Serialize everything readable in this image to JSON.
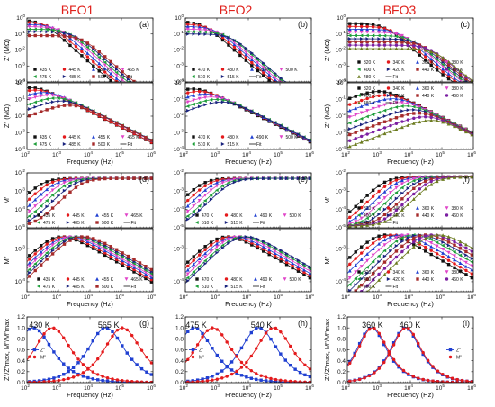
{
  "column_headers": [
    "BFO1",
    "BFO2",
    "BFO3"
  ],
  "colors": {
    "header": "#e0201b",
    "series": [
      "#111111",
      "#e41a1c",
      "#1f3fd1",
      "#e043c8",
      "#1d9e39",
      "#1a237e",
      "#a52a2a",
      "#7b1fa2",
      "#6b7b1f",
      "#0e7490"
    ],
    "blue": "#1f3fd1",
    "red": "#e41a1c"
  },
  "chart_data": [
    {
      "id": "a",
      "panel_label": "(a)",
      "type": "line",
      "xscale": "log",
      "yscale": "log",
      "xlim": [
        100,
        1000000
      ],
      "ylim": [
        0.0001,
        1
      ],
      "xlabel": "",
      "ylabel": "Z' (MΩ)",
      "y_ticks": [
        0.0001,
        0.001,
        0.01,
        0.1,
        1
      ],
      "legend": [
        "435 K",
        "445 K",
        "455 K",
        "465 K",
        "475 K",
        "485 K",
        "500 K",
        "Fit"
      ],
      "legend_position": "bottom-left",
      "shape": "real",
      "y_low": [
        0.75,
        0.55,
        0.4,
        0.29,
        0.2,
        0.14,
        0.08
      ],
      "f_relax": [
        300,
        500,
        800,
        1300,
        2000,
        3200,
        5500
      ],
      "high_end": 5e-05
    },
    {
      "id": "a2",
      "panel_label": "",
      "type": "line",
      "xscale": "log",
      "yscale": "log",
      "xlim": [
        100,
        1000000
      ],
      "ylim": [
        0.0001,
        1
      ],
      "xlabel": "Frequency (Hz)",
      "ylabel": "Z\" (MΩ)",
      "y_ticks": [
        0.0001,
        0.001,
        0.01,
        0.1,
        1
      ],
      "legend": [
        "435 K",
        "445 K",
        "455 K",
        "465 K",
        "475 K",
        "485 K",
        "500 K",
        "Fit"
      ],
      "legend_position": "bottom-left",
      "shape": "imag",
      "y_peak": [
        0.5,
        0.36,
        0.26,
        0.18,
        0.12,
        0.08,
        0.045
      ],
      "f_peak": [
        150,
        220,
        400,
        600,
        1000,
        1500,
        2600
      ]
    },
    {
      "id": "b",
      "panel_label": "(b)",
      "type": "line",
      "xscale": "log",
      "yscale": "log",
      "xlim": [
        100,
        1000000
      ],
      "ylim": [
        0.0001,
        1
      ],
      "xlabel": "",
      "ylabel": "",
      "y_ticks": [
        0.0001,
        0.001,
        0.01,
        0.1,
        1
      ],
      "legend": [
        "470 K",
        "480 K",
        "490 K",
        "500 K",
        "510 K",
        "515 K",
        "Fit"
      ],
      "legend_position": "bottom-left",
      "shape": "real",
      "y_low": [
        0.6,
        0.42,
        0.3,
        0.2,
        0.14,
        0.1
      ],
      "f_relax": [
        350,
        550,
        850,
        1300,
        2000,
        2800
      ],
      "high_end": 5e-05
    },
    {
      "id": "b2",
      "panel_label": "",
      "type": "line",
      "xscale": "log",
      "yscale": "log",
      "xlim": [
        100,
        1000000
      ],
      "ylim": [
        0.0001,
        1
      ],
      "xlabel": "Frequency (Hz)",
      "ylabel": "",
      "y_ticks": [
        0.0001,
        0.001,
        0.01,
        0.1,
        1
      ],
      "legend": [
        "470 K",
        "480 K",
        "490 K",
        "500 K",
        "510 K",
        "515 K",
        "Fit"
      ],
      "legend_position": "bottom-left",
      "shape": "imag",
      "y_peak": [
        0.42,
        0.3,
        0.21,
        0.14,
        0.1,
        0.07
      ],
      "f_peak": [
        200,
        320,
        500,
        800,
        1200,
        1700
      ]
    },
    {
      "id": "c",
      "panel_label": "(c)",
      "type": "line",
      "xscale": "log",
      "yscale": "log",
      "xlim": [
        100,
        1000000
      ],
      "ylim": [
        0.0001,
        1
      ],
      "xlabel": "",
      "ylabel": "Z' (MΩ)",
      "y_ticks": [
        0.0001,
        0.001,
        0.01,
        0.1,
        1
      ],
      "legend": [
        "320 K",
        "340 K",
        "360 K",
        "380 K",
        "400 K",
        "420 K",
        "440 K",
        "460 K",
        "480 K",
        "Fit"
      ],
      "legend_position": "bottom-right",
      "shape": "real",
      "y_low": [
        0.45,
        0.3,
        0.2,
        0.13,
        0.08,
        0.05,
        0.032,
        0.02,
        0.012
      ],
      "f_relax": [
        1500,
        2500,
        4000,
        6500,
        10000,
        16000,
        25000,
        40000,
        60000
      ],
      "high_end": 0.00015
    },
    {
      "id": "c2",
      "panel_label": "",
      "type": "line",
      "xscale": "log",
      "yscale": "log",
      "xlim": [
        100,
        1000000
      ],
      "ylim": [
        0.0001,
        1
      ],
      "xlabel": "Frequency (Hz)",
      "ylabel": "Z\" (MΩ)",
      "y_ticks": [
        0.0001,
        0.001,
        0.01,
        0.1,
        1
      ],
      "legend": [
        "320 K",
        "340 K",
        "360 K",
        "380 K",
        "400 K",
        "420 K",
        "440 K",
        "460 K",
        "480 K",
        "Fit"
      ],
      "legend_position": "top-right",
      "shape": "imag",
      "y_peak": [
        0.3,
        0.18,
        0.11,
        0.065,
        0.04,
        0.024,
        0.015,
        0.009,
        0.0055
      ],
      "f_peak": [
        1200,
        2000,
        3300,
        5500,
        9000,
        14000,
        22000,
        35000,
        55000
      ]
    },
    {
      "id": "d",
      "panel_label": "(d)",
      "type": "line",
      "xscale": "log",
      "yscale": "log",
      "xlim": [
        100,
        1000000
      ],
      "ylim": [
        1e-05,
        0.01
      ],
      "xlabel": "",
      "ylabel": "M'",
      "y_ticks": [
        1e-05,
        0.0001,
        0.001,
        0.01
      ],
      "legend": [
        "435 K",
        "445 K",
        "455 K",
        "465 K",
        "475 K",
        "485 K",
        "500 K",
        "Fit"
      ],
      "legend_position": "bottom-right",
      "shape": "mreal",
      "y_high": 0.005,
      "f_relax": [
        300,
        500,
        800,
        1300,
        2000,
        3200,
        5500
      ]
    },
    {
      "id": "d2",
      "panel_label": "",
      "type": "line",
      "xscale": "log",
      "yscale": "log",
      "xlim": [
        100,
        1000000
      ],
      "ylim": [
        5e-05,
        0.004
      ],
      "xlabel": "Frequency (Hz)",
      "ylabel": "M\"",
      "y_ticks": [
        0.0001,
        0.001
      ],
      "legend": [
        "435 K",
        "445 K",
        "455 K",
        "465 K",
        "475 K",
        "485 K",
        "500 K",
        "Fit"
      ],
      "legend_position": "bottom-right",
      "shape": "mimag",
      "y_peak": 0.0022,
      "f_peak": [
        900,
        1200,
        1600,
        2000,
        2600,
        3300,
        4300
      ]
    },
    {
      "id": "e",
      "panel_label": "(e)",
      "type": "line",
      "xscale": "log",
      "yscale": "log",
      "xlim": [
        100,
        1000000
      ],
      "ylim": [
        1e-05,
        0.01
      ],
      "xlabel": "",
      "ylabel": "",
      "y_ticks": [
        1e-05,
        0.0001,
        0.001,
        0.01
      ],
      "legend": [
        "470 K",
        "480 K",
        "490 K",
        "500 K",
        "510 K",
        "515 K",
        "Fit"
      ],
      "legend_position": "bottom-right",
      "shape": "mreal",
      "y_high": 0.005,
      "f_relax": [
        350,
        550,
        850,
        1300,
        2000,
        2800
      ]
    },
    {
      "id": "e2",
      "panel_label": "",
      "type": "line",
      "xscale": "log",
      "yscale": "log",
      "xlim": [
        100,
        1000000
      ],
      "ylim": [
        5e-05,
        0.004
      ],
      "xlabel": "Frequency (Hz)",
      "ylabel": "",
      "y_ticks": [
        0.0001,
        0.001
      ],
      "legend": [
        "470 K",
        "480 K",
        "490 K",
        "500 K",
        "510 K",
        "515 K",
        "Fit"
      ],
      "legend_position": "bottom-right",
      "shape": "mimag",
      "y_peak": 0.0022,
      "f_peak": [
        1500,
        2000,
        2700,
        3600,
        4800,
        6000
      ]
    },
    {
      "id": "f",
      "panel_label": "(f)",
      "type": "line",
      "xscale": "log",
      "yscale": "log",
      "xlim": [
        100,
        1000000
      ],
      "ylim": [
        1e-05,
        0.01
      ],
      "xlabel": "",
      "ylabel": "M'",
      "y_ticks": [
        1e-05,
        0.0001,
        0.001,
        0.01
      ],
      "legend": [
        "320 K",
        "340 K",
        "360 K",
        "380 K",
        "400 K",
        "420 K",
        "440 K",
        "460 K",
        "480 K",
        "Fit"
      ],
      "legend_position": "bottom-right",
      "shape": "mreal",
      "y_high": 0.006,
      "f_relax": [
        1500,
        2500,
        4000,
        6500,
        10000,
        16000,
        25000,
        40000,
        60000
      ]
    },
    {
      "id": "f2",
      "panel_label": "",
      "type": "line",
      "xscale": "log",
      "yscale": "log",
      "xlim": [
        100,
        1000000
      ],
      "ylim": [
        5e-05,
        0.004
      ],
      "xlabel": "Frequency (Hz)",
      "ylabel": "M\"",
      "y_ticks": [
        0.0001,
        0.001
      ],
      "legend": [
        "320 K",
        "340 K",
        "360 K",
        "380 K",
        "400 K",
        "420 K",
        "440 K",
        "460 K",
        "480 K",
        "Fit"
      ],
      "legend_position": "bottom-right",
      "shape": "mimag",
      "y_peak": 0.0025,
      "f_peak": [
        1200,
        2000,
        3300,
        5500,
        9000,
        14000,
        22000,
        35000,
        55000
      ]
    },
    {
      "id": "g",
      "panel_label": "(g)",
      "type": "line",
      "xscale": "log",
      "yscale": "linear",
      "xlim": [
        100,
        1000000
      ],
      "ylim": [
        0,
        1.2
      ],
      "xlabel": "Frequency (Hz)",
      "ylabel": "Z\"/Z\"max, M\"/M\"max",
      "y_ticks": [
        0.0,
        0.2,
        0.4,
        0.6,
        0.8,
        1.0,
        1.2
      ],
      "annotations": [
        "430 K",
        "565 K"
      ],
      "legend": [
        "Z\"",
        "M\""
      ],
      "legend_position": "center-left",
      "norm": [
        {
          "name": "Z\"",
          "color": "blue",
          "f_peaks": [
            150,
            30000
          ]
        },
        {
          "name": "M\"",
          "color": "red",
          "f_peaks": [
            600,
            100000
          ]
        }
      ]
    },
    {
      "id": "h",
      "panel_label": "(h)",
      "type": "line",
      "xscale": "log",
      "yscale": "linear",
      "xlim": [
        100,
        1000000
      ],
      "ylim": [
        0,
        1.2
      ],
      "xlabel": "Frequency (Hz)",
      "ylabel": "",
      "y_ticks": [
        0.0,
        0.2,
        0.4,
        0.6,
        0.8,
        1.0,
        1.2
      ],
      "annotations": [
        "475 K",
        "540 K"
      ],
      "legend": [
        "Z\"",
        "M\""
      ],
      "legend_position": "center-left",
      "norm": [
        {
          "name": "Z\"",
          "color": "blue",
          "f_peaks": [
            180,
            20000
          ]
        },
        {
          "name": "M\"",
          "color": "red",
          "f_peaks": [
            700,
            60000
          ]
        }
      ]
    },
    {
      "id": "i",
      "panel_label": "(i)",
      "type": "line",
      "xscale": "log",
      "yscale": "linear",
      "xlim": [
        100,
        1000000
      ],
      "ylim": [
        0,
        1.2
      ],
      "xlabel": "Frequency (Hz)",
      "ylabel": "Z\"/Z\"max, M\"/M\"max",
      "y_ticks": [
        0.0,
        0.2,
        0.4,
        0.6,
        0.8,
        1.0,
        1.2
      ],
      "annotations": [
        "360 K",
        "460 K"
      ],
      "legend": [
        "Z\"",
        "M\""
      ],
      "legend_position": "center-right",
      "norm": [
        {
          "name": "Z\"",
          "color": "blue",
          "f_peaks": [
            550,
            6500
          ]
        },
        {
          "name": "M\"",
          "color": "red",
          "f_peaks": [
            600,
            7000
          ]
        }
      ]
    }
  ]
}
